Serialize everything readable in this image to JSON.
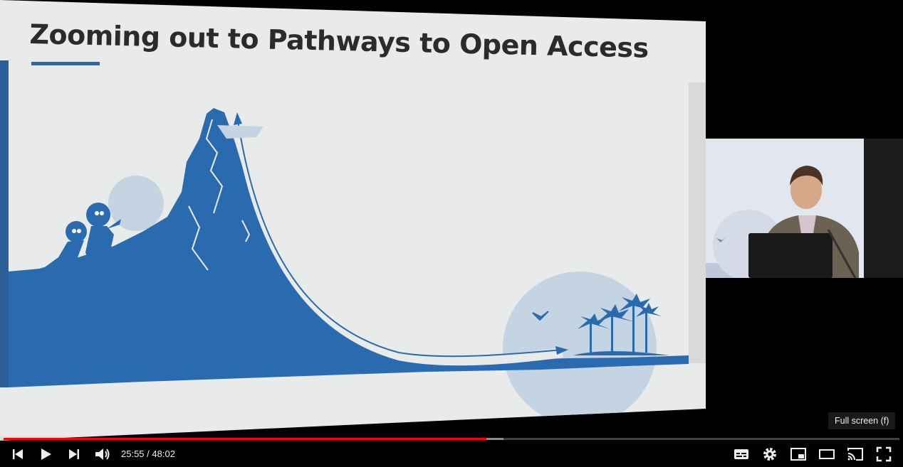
{
  "slide": {
    "title": "Zooming out to Pathways to Open Access"
  },
  "player": {
    "current_time": "25:55",
    "separator": "/",
    "duration": "48:02",
    "progress_fraction": 0.539,
    "buffered_fraction": 0.558,
    "tooltip": "Full screen (f)",
    "controls": {
      "previous": "previous-icon",
      "play": "play-icon",
      "next": "next-icon",
      "volume": "volume-icon",
      "subtitles": "subtitles-icon",
      "settings": "settings-icon",
      "miniplayer": "miniplayer-icon",
      "theater": "theater-mode-icon",
      "cast": "cast-icon",
      "fullscreen": "fullscreen-icon"
    }
  },
  "colors": {
    "accent": "#2a68aa",
    "progress": "#ff0000",
    "slide_bg": "#e9ebea"
  }
}
